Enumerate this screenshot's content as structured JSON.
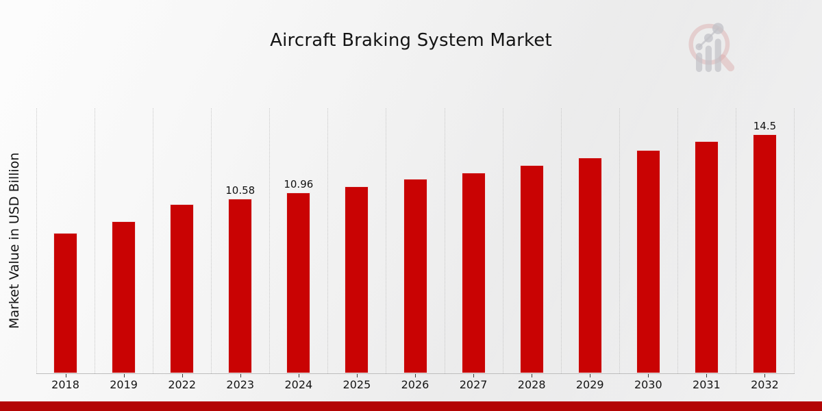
{
  "title": "Aircraft Braking System Market",
  "y_axis_label": "Market Value in USD Billion",
  "colors": {
    "bar": "#c90303",
    "bottom_band": "#b30505",
    "gridline": "#c7c7c7",
    "axis_line": "#bdbdbd",
    "text": "#141414",
    "logo_ring": "#dcaaaa",
    "logo_bars": "#c2c2c8"
  },
  "chart_data": {
    "type": "bar",
    "title": "Aircraft Braking System Market",
    "xlabel": "",
    "ylabel": "Market Value in USD Billion",
    "categories": [
      "2018",
      "2019",
      "2022",
      "2023",
      "2024",
      "2025",
      "2026",
      "2027",
      "2028",
      "2029",
      "2030",
      "2031",
      "2032"
    ],
    "values": [
      8.5,
      9.24,
      10.25,
      10.58,
      10.96,
      11.35,
      11.78,
      12.18,
      12.62,
      13.07,
      13.53,
      14.1,
      14.5
    ],
    "bar_labels": [
      "",
      "",
      "",
      "10.58",
      "10.96",
      "",
      "",
      "",
      "",
      "",
      "",
      "",
      "14.5"
    ],
    "ylim": [
      0,
      16.08
    ],
    "grid": "vertical-dotted",
    "legend": "none",
    "bar_color": "#c90303"
  }
}
